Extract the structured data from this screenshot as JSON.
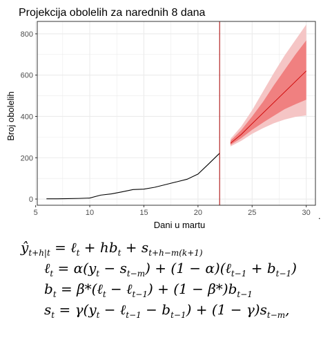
{
  "chart_data": {
    "type": "line",
    "title": "Projekcija obolelih za narednih 8 dana",
    "xlabel": "Dani u martu",
    "ylabel": "Broj obolelih",
    "xlim": [
      5.15,
      30.85
    ],
    "ylim": [
      -30,
      860
    ],
    "xticks": [
      5,
      10,
      15,
      20,
      25,
      30
    ],
    "yticks": [
      0,
      200,
      400,
      600,
      800
    ],
    "grid": true,
    "vline_x": 22,
    "dot_label": ".",
    "observed": {
      "x": [
        6,
        7,
        8,
        9,
        10,
        11,
        12,
        13,
        14,
        15,
        16,
        17,
        18,
        19,
        20,
        21,
        22
      ],
      "y": [
        1,
        1,
        2,
        3,
        5,
        19,
        25,
        35,
        46,
        48,
        57,
        70,
        83,
        96,
        121,
        171,
        222
      ]
    },
    "forecast": {
      "x": [
        23,
        24,
        25,
        26,
        27,
        28,
        29,
        30
      ],
      "mean": [
        270,
        313,
        365,
        416,
        467,
        518,
        569,
        620
      ],
      "lo80": [
        262,
        295,
        335,
        370,
        403,
        435,
        459,
        481
      ],
      "hi80": [
        282,
        334,
        400,
        470,
        550,
        625,
        700,
        768
      ],
      "lo95": [
        255,
        282,
        316,
        343,
        367,
        385,
        398,
        405
      ],
      "hi95": [
        291,
        352,
        430,
        520,
        610,
        695,
        770,
        845
      ]
    },
    "colors": {
      "line": "#000000",
      "forecast_line": "#cc0000",
      "band80": "#f08080",
      "band95": "#f5c5c5",
      "vline": "#b22222",
      "grid": "#ebebeb",
      "panel_border": "#333333"
    }
  },
  "formulas": {
    "line1": "ŷ_{t+h|t} = ℓ_t + h b_t + s_{t+h−m(k+1)}",
    "line2": "ℓ_t = α(y_t − s_{t−m}) + (1 − α)(ℓ_{t−1} + b_{t−1})",
    "line3": "b_t = β*(ℓ_t − ℓ_{t−1}) + (1 − β*)b_{t−1}",
    "line4": "s_t = γ(y_t − ℓ_{t−1} − b_{t−1}) + (1 − γ)s_{t−m},"
  }
}
